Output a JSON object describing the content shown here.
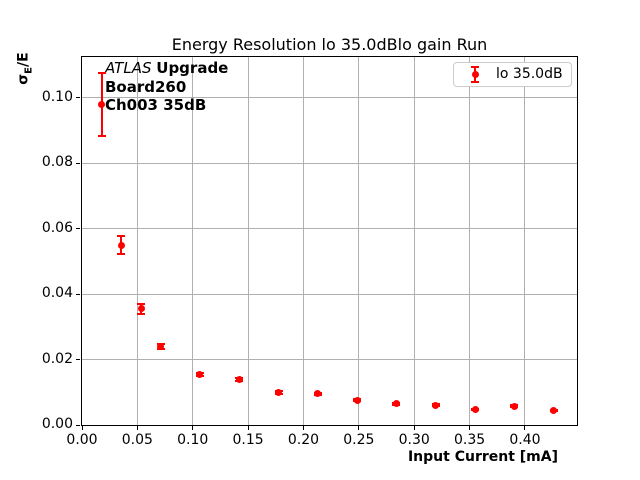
{
  "chart_data": {
    "type": "scatter",
    "title": "Energy Resolution lo 35.0dBlo gain Run",
    "xlabel": "Input Current [mA]",
    "ylabel": "σE/E",
    "ylabel_parts": {
      "sigma": "σ",
      "subscript": "E",
      "suffix": "/E"
    },
    "xlim": [
      0,
      0.447
    ],
    "ylim": [
      0,
      0.1125
    ],
    "grid": true,
    "x_ticks": [
      {
        "value": 0.0,
        "label": "0.00"
      },
      {
        "value": 0.05,
        "label": "0.05"
      },
      {
        "value": 0.1,
        "label": "0.10"
      },
      {
        "value": 0.15,
        "label": "0.15"
      },
      {
        "value": 0.2,
        "label": "0.20"
      },
      {
        "value": 0.25,
        "label": "0.25"
      },
      {
        "value": 0.3,
        "label": "0.30"
      },
      {
        "value": 0.35,
        "label": "0.35"
      },
      {
        "value": 0.4,
        "label": "0.40"
      }
    ],
    "y_ticks": [
      {
        "value": 0.0,
        "label": "0.00"
      },
      {
        "value": 0.02,
        "label": "0.02"
      },
      {
        "value": 0.04,
        "label": "0.04"
      },
      {
        "value": 0.06,
        "label": "0.06"
      },
      {
        "value": 0.08,
        "label": "0.08"
      },
      {
        "value": 0.1,
        "label": "0.10"
      }
    ],
    "legend": {
      "position": "upper right",
      "entries": [
        {
          "label": "lo 35.0dB",
          "color": "#ff0000",
          "marker": "errorbar-point"
        }
      ]
    },
    "annotation": {
      "line1_italic": "ATLAS",
      "line1_bold": "Upgrade",
      "line2": "Board260",
      "line3": "Ch003 35dB"
    },
    "series": [
      {
        "name": "lo 35.0dB",
        "color": "#ff0000",
        "marker": "circle",
        "x": [
          0.0178,
          0.0355,
          0.0533,
          0.071,
          0.1065,
          0.142,
          0.1775,
          0.213,
          0.2485,
          0.284,
          0.3195,
          0.355,
          0.3905,
          0.426
        ],
        "y": [
          0.098,
          0.055,
          0.0355,
          0.024,
          0.0155,
          0.014,
          0.01,
          0.0095,
          0.0075,
          0.0065,
          0.006,
          0.0048,
          0.0058,
          0.0045
        ],
        "yerr": [
          0.0095,
          0.0028,
          0.0016,
          0.0008,
          0.0005,
          0.0005,
          0.0004,
          0.0004,
          0.0003,
          0.0003,
          0.0003,
          0.0002,
          0.0003,
          0.0002
        ]
      }
    ]
  },
  "colors": {
    "series": "#ff0000",
    "grid": "#b0b0b0",
    "frame": "#000000",
    "legend_border": "#cccccc",
    "background": "#ffffff",
    "text": "#000000"
  }
}
